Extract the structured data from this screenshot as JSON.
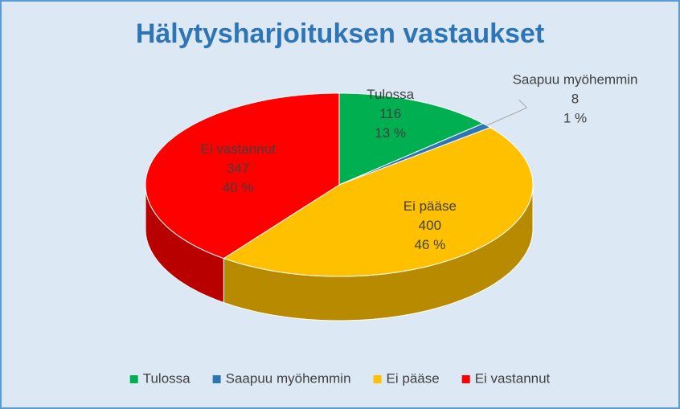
{
  "chart_data": {
    "type": "pie3d",
    "title": "Hälytysharjoituksen vastaukset",
    "categories": [
      "Tulossa",
      "Saapuu myöhemmin",
      "Ei pääse",
      "Ei vastannut"
    ],
    "values": [
      116,
      8,
      400,
      347
    ],
    "percent_labels": [
      "13 %",
      "1 %",
      "46 %",
      "40 %"
    ],
    "colors": [
      "#00b050",
      "#2e75b6",
      "#ffc000",
      "#ff0000"
    ],
    "legend": "bottom"
  }
}
